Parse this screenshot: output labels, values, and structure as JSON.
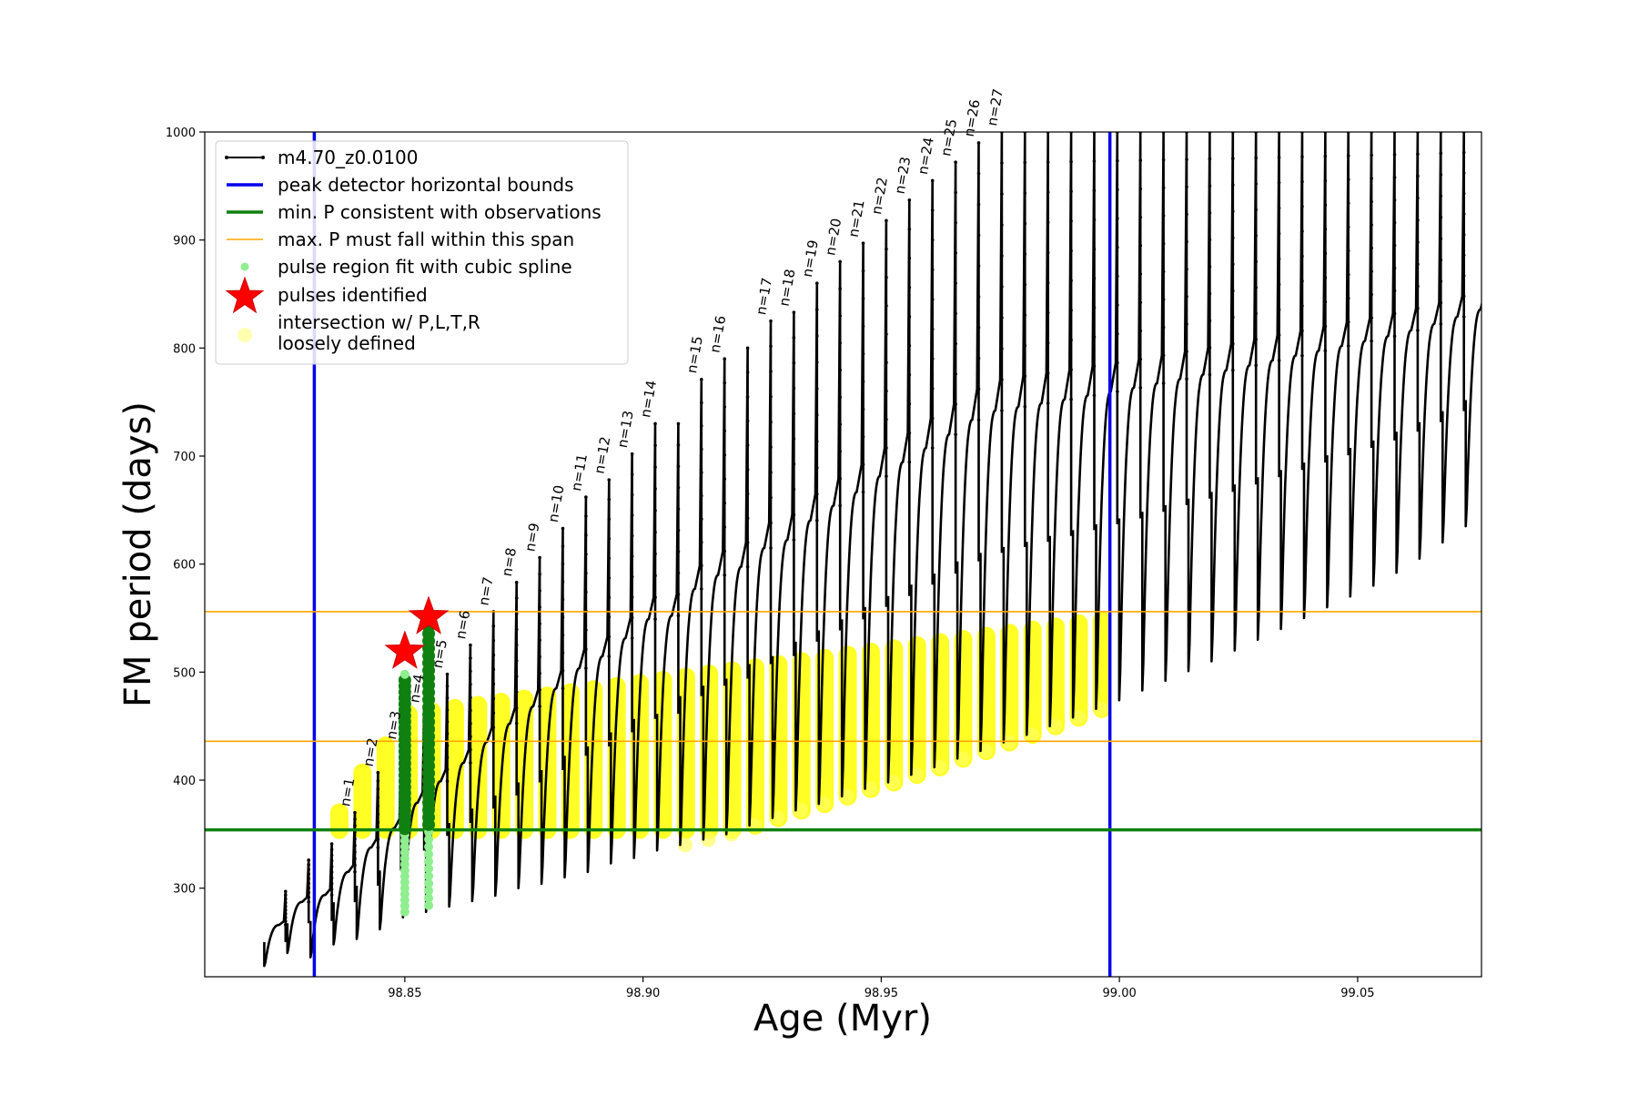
{
  "chart_data": {
    "type": "scatter",
    "title": "",
    "xlabel": "Age (Myr)",
    "ylabel": "FM period (days)",
    "xlim": [
      98.808,
      99.076
    ],
    "ylim": [
      218,
      1000
    ],
    "xticks": [
      98.85,
      98.9,
      98.95,
      99.0,
      99.05
    ],
    "xtick_labels": [
      "98.85",
      "98.90",
      "98.95",
      "99.00",
      "99.05"
    ],
    "yticks": [
      300,
      400,
      500,
      600,
      700,
      800,
      900,
      1000
    ],
    "ytick_labels": [
      "300",
      "400",
      "500",
      "600",
      "700",
      "800",
      "900",
      "1000"
    ],
    "grid": false,
    "legend_position": "top-left",
    "legend": [
      {
        "label": "m4.70_z0.0100",
        "kind": "line-marker",
        "color": "#000000"
      },
      {
        "label": "peak detector horizontal bounds",
        "kind": "thick-line",
        "color": "#0000ee"
      },
      {
        "label": "min. P consistent with observations",
        "kind": "thick-line",
        "color": "#108010"
      },
      {
        "label": "max. P must fall within this span",
        "kind": "thin-line",
        "color": "#ffa500"
      },
      {
        "label": "pulse region fit with cubic spline",
        "kind": "dot",
        "color": "#90ee90"
      },
      {
        "label": "pulses identified",
        "kind": "star",
        "color": "#ff0000"
      },
      {
        "label": "intersection w/ P,L,T,R",
        "label2": "loosely defined",
        "kind": "big-dot",
        "color": "#ffffb0"
      }
    ],
    "vertical_bounds": [
      98.831,
      98.998
    ],
    "min_period": 354,
    "max_period_span": [
      436,
      556
    ],
    "track": {
      "name": "m4.70_z0.0100",
      "x_start": 98.8205,
      "dx": 0.00485,
      "pulses": [
        {
          "label": "",
          "peak": 297,
          "base": 228
        },
        {
          "label": "",
          "peak": 326,
          "base": 240
        },
        {
          "label": "",
          "peak": 341,
          "base": 236
        },
        {
          "label": "n=1",
          "peak": 370,
          "base": 248
        },
        {
          "label": "n=2",
          "peak": 407,
          "base": 253
        },
        {
          "label": "n=3",
          "peak": 432,
          "base": 262
        },
        {
          "label": "n=4",
          "peak": 466,
          "base": 273
        },
        {
          "label": "n=5",
          "peak": 498,
          "base": 278
        },
        {
          "label": "n=6",
          "peak": 525,
          "base": 283
        },
        {
          "label": "n=7",
          "peak": 556,
          "base": 288
        },
        {
          "label": "n=8",
          "peak": 583,
          "base": 293
        },
        {
          "label": "n=9",
          "peak": 606,
          "base": 300
        },
        {
          "label": "n=10",
          "peak": 633,
          "base": 304
        },
        {
          "label": "n=11",
          "peak": 662,
          "base": 310
        },
        {
          "label": "n=12",
          "peak": 678,
          "base": 315
        },
        {
          "label": "n=13",
          "peak": 702,
          "base": 323
        },
        {
          "label": "n=14",
          "peak": 730,
          "base": 328
        },
        {
          "label": "",
          "peak": 730,
          "base": 335
        },
        {
          "label": "n=15",
          "peak": 771,
          "base": 340
        },
        {
          "label": "n=16",
          "peak": 790,
          "base": 345
        },
        {
          "label": "",
          "peak": 800,
          "base": 350
        },
        {
          "label": "n=17",
          "peak": 825,
          "base": 358
        },
        {
          "label": "n=18",
          "peak": 833,
          "base": 365
        },
        {
          "label": "n=19",
          "peak": 860,
          "base": 372
        },
        {
          "label": "n=20",
          "peak": 880,
          "base": 378
        },
        {
          "label": "n=21",
          "peak": 897,
          "base": 385
        },
        {
          "label": "n=22",
          "peak": 918,
          "base": 392
        },
        {
          "label": "n=23",
          "peak": 937,
          "base": 398
        },
        {
          "label": "n=24",
          "peak": 955,
          "base": 405
        },
        {
          "label": "n=25",
          "peak": 972,
          "base": 412
        },
        {
          "label": "n=26",
          "peak": 990,
          "base": 420
        },
        {
          "label": "n=27",
          "peak": 1000,
          "base": 427
        },
        {
          "label": "",
          "peak": 1000,
          "base": 435
        },
        {
          "label": "",
          "peak": 1000,
          "base": 442
        },
        {
          "label": "",
          "peak": 1000,
          "base": 450
        },
        {
          "label": "",
          "peak": 1000,
          "base": 458
        },
        {
          "label": "",
          "peak": 1000,
          "base": 466
        },
        {
          "label": "",
          "peak": 1000,
          "base": 474
        },
        {
          "label": "",
          "peak": 1000,
          "base": 483
        },
        {
          "label": "",
          "peak": 1000,
          "base": 492
        },
        {
          "label": "",
          "peak": 1000,
          "base": 501
        },
        {
          "label": "",
          "peak": 1000,
          "base": 510
        },
        {
          "label": "",
          "peak": 1000,
          "base": 520
        },
        {
          "label": "",
          "peak": 1000,
          "base": 530
        },
        {
          "label": "",
          "peak": 1000,
          "base": 540
        },
        {
          "label": "",
          "peak": 1000,
          "base": 550
        },
        {
          "label": "",
          "peak": 1000,
          "base": 560
        },
        {
          "label": "",
          "peak": 1000,
          "base": 570
        },
        {
          "label": "",
          "peak": 1000,
          "base": 580
        },
        {
          "label": "",
          "peak": 1000,
          "base": 592
        },
        {
          "label": "",
          "peak": 1000,
          "base": 605
        },
        {
          "label": "",
          "peak": 1000,
          "base": 620
        },
        {
          "label": "",
          "peak": 1000,
          "base": 635
        },
        {
          "label": "",
          "peak": 1000,
          "base": 655
        },
        {
          "label": "",
          "peak": 1000,
          "base": 675
        }
      ]
    },
    "spline_regions": [
      {
        "x": 98.85,
        "ymin": 278,
        "ymax": 498
      },
      {
        "x": 98.855,
        "ymin": 284,
        "ymax": 556
      }
    ],
    "pulses_identified": [
      {
        "x": 98.85,
        "y": 519
      },
      {
        "x": 98.855,
        "y": 551
      }
    ]
  }
}
